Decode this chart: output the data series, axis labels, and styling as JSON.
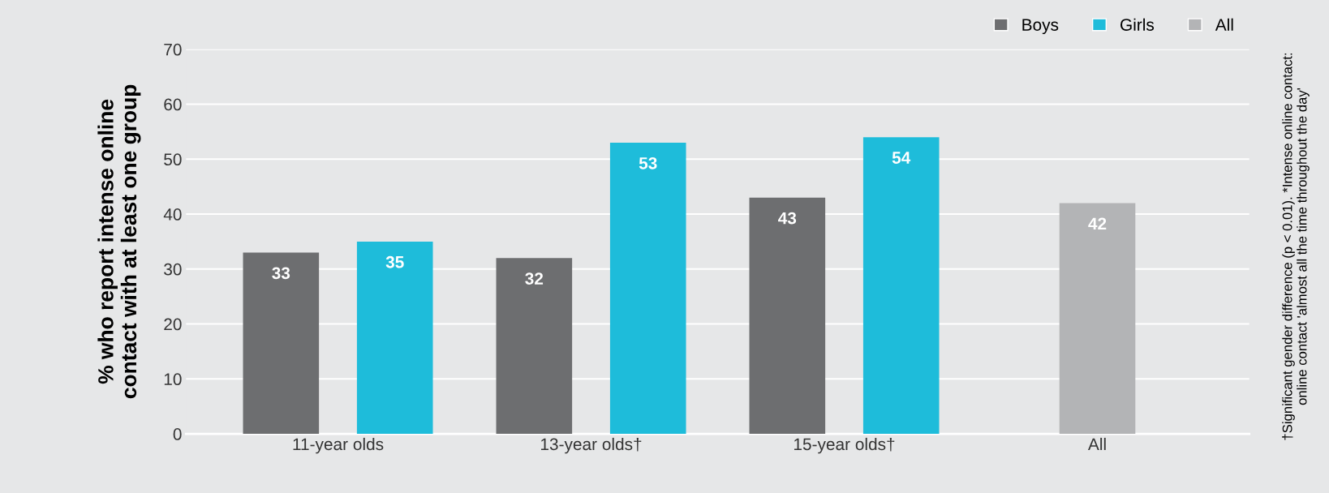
{
  "chart_data": {
    "type": "bar",
    "ylabel": "% who report intense online\ncontact with at least one group",
    "categories": [
      "11-year olds",
      "13-year olds†",
      "15-year olds†",
      "All"
    ],
    "series": [
      {
        "name": "Boys",
        "color": "#6d6e70",
        "values": [
          33,
          32,
          43,
          null
        ]
      },
      {
        "name": "Girls",
        "color": "#1ebcda",
        "values": [
          35,
          53,
          54,
          null
        ]
      },
      {
        "name": "All",
        "color": "#b3b4b6",
        "values": [
          null,
          null,
          null,
          42
        ]
      }
    ],
    "ylim": [
      0,
      70
    ],
    "yticks": [
      0,
      10,
      20,
      30,
      40,
      50,
      60,
      70
    ],
    "grid": "y",
    "legend": "top right",
    "data_labels": true,
    "annotations": [
      "†Significant gender difference (p < 0.01). *Intense online contact:\nonline contact 'almost all the time throughout the day'"
    ]
  }
}
